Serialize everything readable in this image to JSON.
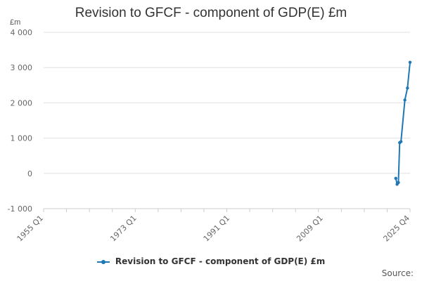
{
  "chart_data": {
    "type": "line",
    "title": "Revision to GFCF - component of GDP(E) £m",
    "ylabel": "£m",
    "xlabel": "",
    "ylim": [
      -1000,
      4000
    ],
    "yticks": [
      -1000,
      0,
      1000,
      2000,
      3000,
      4000
    ],
    "ytick_labels": [
      "-1 000",
      "0",
      "1 000",
      "2 000",
      "3 000",
      "4 000"
    ],
    "x_range": [
      "1955 Q1",
      "2025 Q4"
    ],
    "xtick_labels": [
      "1955 Q1",
      "1973 Q1",
      "1991 Q1",
      "2009 Q1",
      "2025 Q4"
    ],
    "grid": true,
    "legend": "bottom",
    "series": [
      {
        "name": "Revision to GFCF - component of GDP(E) £m",
        "color": "#1f77b4",
        "points": [
          {
            "x": "2023 Q1",
            "y": -140
          },
          {
            "x": "2023 Q2",
            "y": -310
          },
          {
            "x": "2023 Q3",
            "y": -260
          },
          {
            "x": "2023 Q4",
            "y": 870
          },
          {
            "x": "2024 Q1",
            "y": 900
          },
          {
            "x": "2024 Q4",
            "y": 2080
          },
          {
            "x": "2025 Q2",
            "y": 2420
          },
          {
            "x": "2025 Q4",
            "y": 3150
          }
        ]
      }
    ]
  },
  "source_label": "Source:"
}
